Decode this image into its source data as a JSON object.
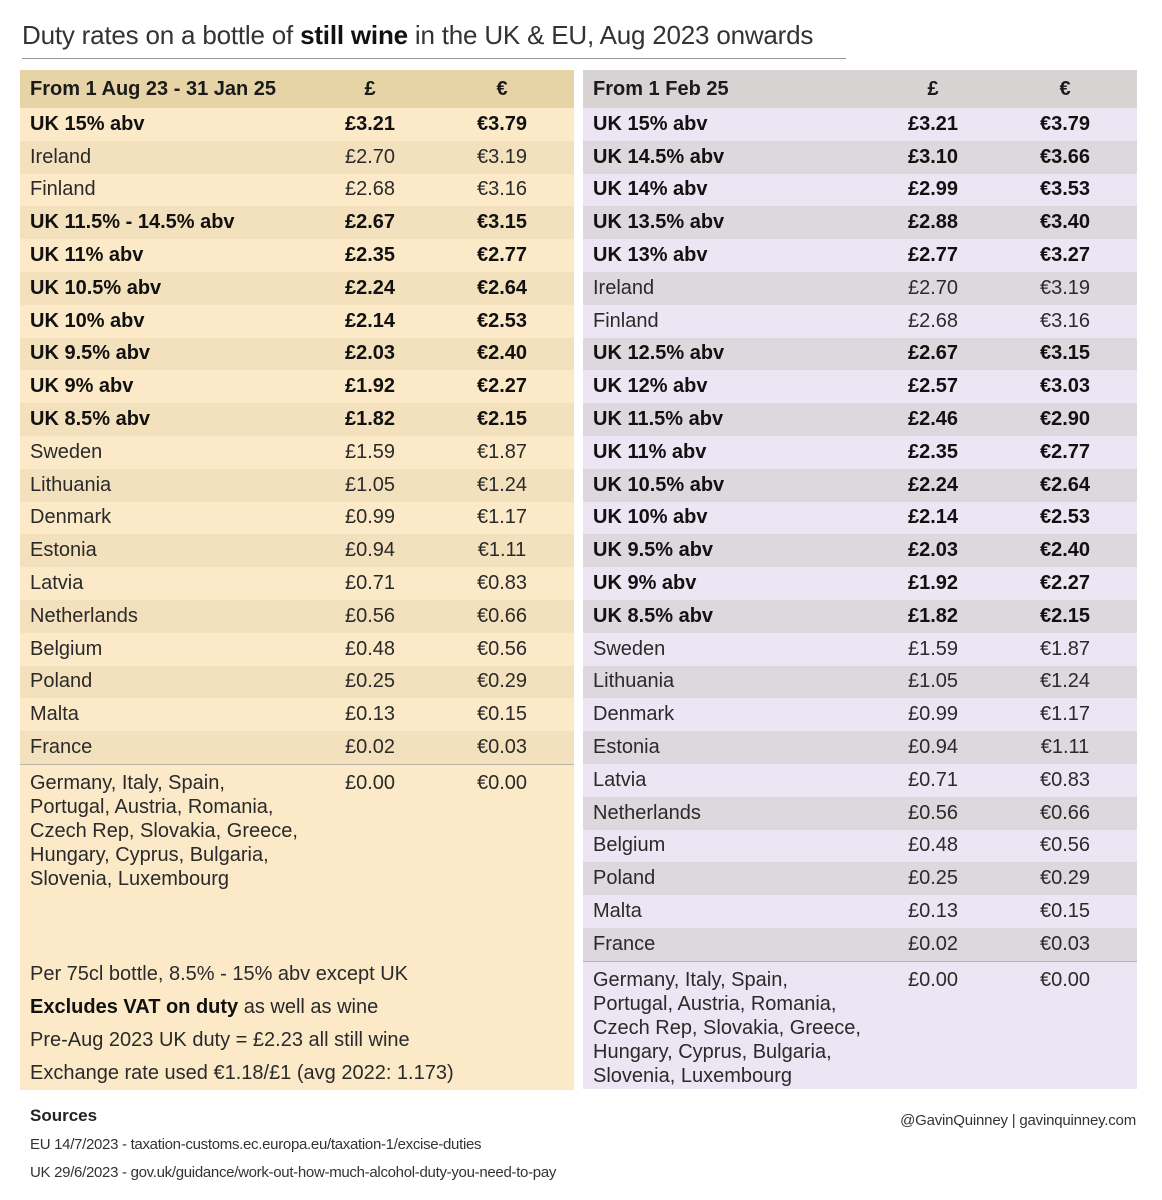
{
  "title": {
    "prefix": "Duty rates on a bottle of ",
    "bold": "still wine",
    "suffix": " in the UK & EU, Aug 2023 onwards"
  },
  "left": {
    "header": {
      "period": "From 1 Aug 23 - 31 Jan 25",
      "gbp": "£",
      "eur": "€"
    },
    "rows": [
      {
        "name": "UK 15% abv",
        "gbp": "£3.21",
        "eur": "€3.79",
        "bold": true
      },
      {
        "name": "Ireland",
        "gbp": "£2.70",
        "eur": "€3.19",
        "bold": false
      },
      {
        "name": "Finland",
        "gbp": "£2.68",
        "eur": "€3.16",
        "bold": false
      },
      {
        "name": "UK 11.5% - 14.5% abv",
        "gbp": "£2.67",
        "eur": "€3.15",
        "bold": true
      },
      {
        "name": "UK 11% abv",
        "gbp": "£2.35",
        "eur": "€2.77",
        "bold": true
      },
      {
        "name": "UK 10.5% abv",
        "gbp": "£2.24",
        "eur": "€2.64",
        "bold": true
      },
      {
        "name": "UK 10% abv",
        "gbp": "£2.14",
        "eur": "€2.53",
        "bold": true
      },
      {
        "name": "UK 9.5% abv",
        "gbp": "£2.03",
        "eur": "€2.40",
        "bold": true
      },
      {
        "name": "UK 9% abv",
        "gbp": "£1.92",
        "eur": "€2.27",
        "bold": true
      },
      {
        "name": "UK 8.5% abv",
        "gbp": "£1.82",
        "eur": "€2.15",
        "bold": true
      },
      {
        "name": "Sweden",
        "gbp": "£1.59",
        "eur": "€1.87",
        "bold": false
      },
      {
        "name": "Lithuania",
        "gbp": "£1.05",
        "eur": "€1.24",
        "bold": false
      },
      {
        "name": "Denmark",
        "gbp": "£0.99",
        "eur": "€1.17",
        "bold": false
      },
      {
        "name": "Estonia",
        "gbp": "£0.94",
        "eur": "€1.11",
        "bold": false
      },
      {
        "name": "Latvia",
        "gbp": "£0.71",
        "eur": "€0.83",
        "bold": false
      },
      {
        "name": "Netherlands",
        "gbp": "£0.56",
        "eur": "€0.66",
        "bold": false
      },
      {
        "name": "Belgium",
        "gbp": "£0.48",
        "eur": "€0.56",
        "bold": false
      },
      {
        "name": "Poland",
        "gbp": "£0.25",
        "eur": "€0.29",
        "bold": false
      },
      {
        "name": "Malta",
        "gbp": "£0.13",
        "eur": "€0.15",
        "bold": false
      },
      {
        "name": "France",
        "gbp": "£0.02",
        "eur": "€0.03",
        "bold": false
      }
    ],
    "zero": {
      "names": "Germany, Italy, Spain, Portugal, Austria, Romania, Czech Rep, Slovakia, Greece, Hungary, Cyprus, Bulgaria, Slovenia, Luxembourg",
      "gbp": "£0.00",
      "eur": "€0.00"
    }
  },
  "right": {
    "header": {
      "period": "From 1 Feb 25",
      "gbp": "£",
      "eur": "€"
    },
    "rows": [
      {
        "name": "UK 15% abv",
        "gbp": "£3.21",
        "eur": "€3.79",
        "bold": true
      },
      {
        "name": "UK 14.5% abv",
        "gbp": "£3.10",
        "eur": "€3.66",
        "bold": true
      },
      {
        "name": "UK 14% abv",
        "gbp": "£2.99",
        "eur": "€3.53",
        "bold": true
      },
      {
        "name": "UK 13.5% abv",
        "gbp": "£2.88",
        "eur": "€3.40",
        "bold": true
      },
      {
        "name": "UK 13% abv",
        "gbp": "£2.77",
        "eur": "€3.27",
        "bold": true
      },
      {
        "name": "Ireland",
        "gbp": "£2.70",
        "eur": "€3.19",
        "bold": false
      },
      {
        "name": "Finland",
        "gbp": "£2.68",
        "eur": "€3.16",
        "bold": false
      },
      {
        "name": "UK 12.5% abv",
        "gbp": "£2.67",
        "eur": "€3.15",
        "bold": true
      },
      {
        "name": "UK 12% abv",
        "gbp": "£2.57",
        "eur": "€3.03",
        "bold": true
      },
      {
        "name": "UK 11.5% abv",
        "gbp": "£2.46",
        "eur": "€2.90",
        "bold": true
      },
      {
        "name": "UK 11% abv",
        "gbp": "£2.35",
        "eur": "€2.77",
        "bold": true
      },
      {
        "name": "UK 10.5% abv",
        "gbp": "£2.24",
        "eur": "€2.64",
        "bold": true
      },
      {
        "name": "UK 10% abv",
        "gbp": "£2.14",
        "eur": "€2.53",
        "bold": true
      },
      {
        "name": "UK 9.5% abv",
        "gbp": "£2.03",
        "eur": "€2.40",
        "bold": true
      },
      {
        "name": "UK 9% abv",
        "gbp": "£1.92",
        "eur": "€2.27",
        "bold": true
      },
      {
        "name": "UK 8.5% abv",
        "gbp": "£1.82",
        "eur": "€2.15",
        "bold": true
      },
      {
        "name": "Sweden",
        "gbp": "£1.59",
        "eur": "€1.87",
        "bold": false
      },
      {
        "name": "Lithuania",
        "gbp": "£1.05",
        "eur": "€1.24",
        "bold": false
      },
      {
        "name": "Denmark",
        "gbp": "£0.99",
        "eur": "€1.17",
        "bold": false
      },
      {
        "name": "Estonia",
        "gbp": "£0.94",
        "eur": "€1.11",
        "bold": false
      },
      {
        "name": "Latvia",
        "gbp": "£0.71",
        "eur": "€0.83",
        "bold": false
      },
      {
        "name": "Netherlands",
        "gbp": "£0.56",
        "eur": "€0.66",
        "bold": false
      },
      {
        "name": "Belgium",
        "gbp": "£0.48",
        "eur": "€0.56",
        "bold": false
      },
      {
        "name": "Poland",
        "gbp": "£0.25",
        "eur": "€0.29",
        "bold": false
      },
      {
        "name": "Malta",
        "gbp": "£0.13",
        "eur": "€0.15",
        "bold": false
      },
      {
        "name": "France",
        "gbp": "£0.02",
        "eur": "€0.03",
        "bold": false
      }
    ],
    "zero": {
      "names": "Germany, Italy, Spain, Portugal, Austria, Romania, Czech Rep, Slovakia, Greece, Hungary, Cyprus, Bulgaria, Slovenia, Luxembourg",
      "gbp": "£0.00",
      "eur": "€0.00"
    }
  },
  "notes": {
    "per_bottle": "Per 75cl bottle, 8.5% - 15% abv except UK",
    "vat_bold": "Excludes VAT on duty",
    "vat_rest": " as well as wine",
    "pre_aug": "Pre-Aug 2023 UK duty = £2.23 all still wine",
    "exchange": "Exchange rate used €1.18/£1 (avg 2022: 1.173)"
  },
  "footer": {
    "sources_title": "Sources",
    "eu_source": "EU 14/7/2023 - taxation-customs.ec.europa.eu/taxation-1/excise-duties",
    "uk_source": "UK 29/6/2023 - gov.uk/guidance/work-out-how-much-alcohol-duty-you-need-to-pay",
    "credit": "@GavinQuinney  |  gavinquinney.com"
  },
  "colors": {
    "left_panel": "#fbe9c8",
    "left_header": "#e6d3a6",
    "right_panel": "#ece5f3",
    "right_header": "#d7d3d2"
  }
}
